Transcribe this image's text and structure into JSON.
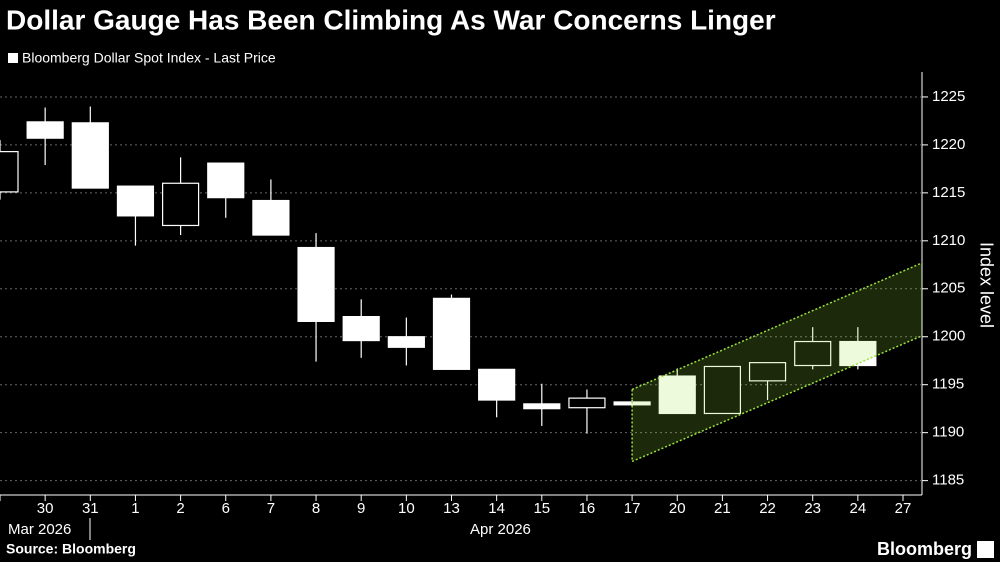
{
  "chart_data": {
    "type": "candlestick",
    "title": "Dollar Gauge Has Been Climbing As War Concerns Linger",
    "legend": "Bloomberg Dollar Spot Index - Last Price",
    "y_label": "Index level",
    "source": "Source: Bloomberg",
    "brand": "Bloomberg",
    "categories": [
      null,
      "30",
      "31",
      "1",
      "2",
      "6",
      "7",
      "8",
      "9",
      "10",
      "13",
      "14",
      "15",
      "16",
      "17",
      "20",
      "21",
      "22",
      "23",
      "24",
      "27"
    ],
    "x_groups": [
      "Mar 2026",
      "Apr 2026"
    ],
    "open": [
      1215.1,
      1222.4,
      1222.3,
      1215.7,
      1211.6,
      1218.1,
      1214.2,
      1209.3,
      1202.1,
      1200.0,
      1204.0,
      1196.6,
      1193.0,
      1192.6,
      1193.2,
      1195.9,
      1192.0,
      1195.4,
      1197.0,
      1199.5,
      null
    ],
    "high": [
      1220.5,
      1223.9,
      1224.0,
      1215.7,
      1218.7,
      1218.1,
      1216.4,
      1210.8,
      1203.9,
      1202.0,
      1204.4,
      1196.6,
      1195.1,
      1194.5,
      1193.4,
      1196.7,
      1196.9,
      1197.3,
      1201.0,
      1201.0,
      null
    ],
    "low": [
      1214.3,
      1217.9,
      1215.5,
      1209.5,
      1210.6,
      1212.4,
      1210.6,
      1197.4,
      1197.8,
      1197.0,
      1196.6,
      1191.6,
      1190.7,
      1189.9,
      1192.7,
      1192.0,
      1192.0,
      1193.4,
      1196.6,
      1196.6,
      null
    ],
    "close": [
      1219.3,
      1220.7,
      1215.5,
      1212.6,
      1216.0,
      1214.5,
      1210.6,
      1201.6,
      1199.6,
      1198.9,
      1196.6,
      1193.4,
      1192.5,
      1193.6,
      1192.9,
      1192.0,
      1196.9,
      1197.3,
      1199.5,
      1197.0,
      null
    ],
    "channel": {
      "upper": [
        1194.5,
        1207.7
      ],
      "lower": [
        1187.0,
        1200.1
      ],
      "color": "#9be23c"
    },
    "ylim": [
      1183.5,
      1227.6
    ],
    "yticks": [
      1185,
      1190,
      1195,
      1200,
      1205,
      1210,
      1215,
      1220,
      1225
    ],
    "grid": true
  }
}
